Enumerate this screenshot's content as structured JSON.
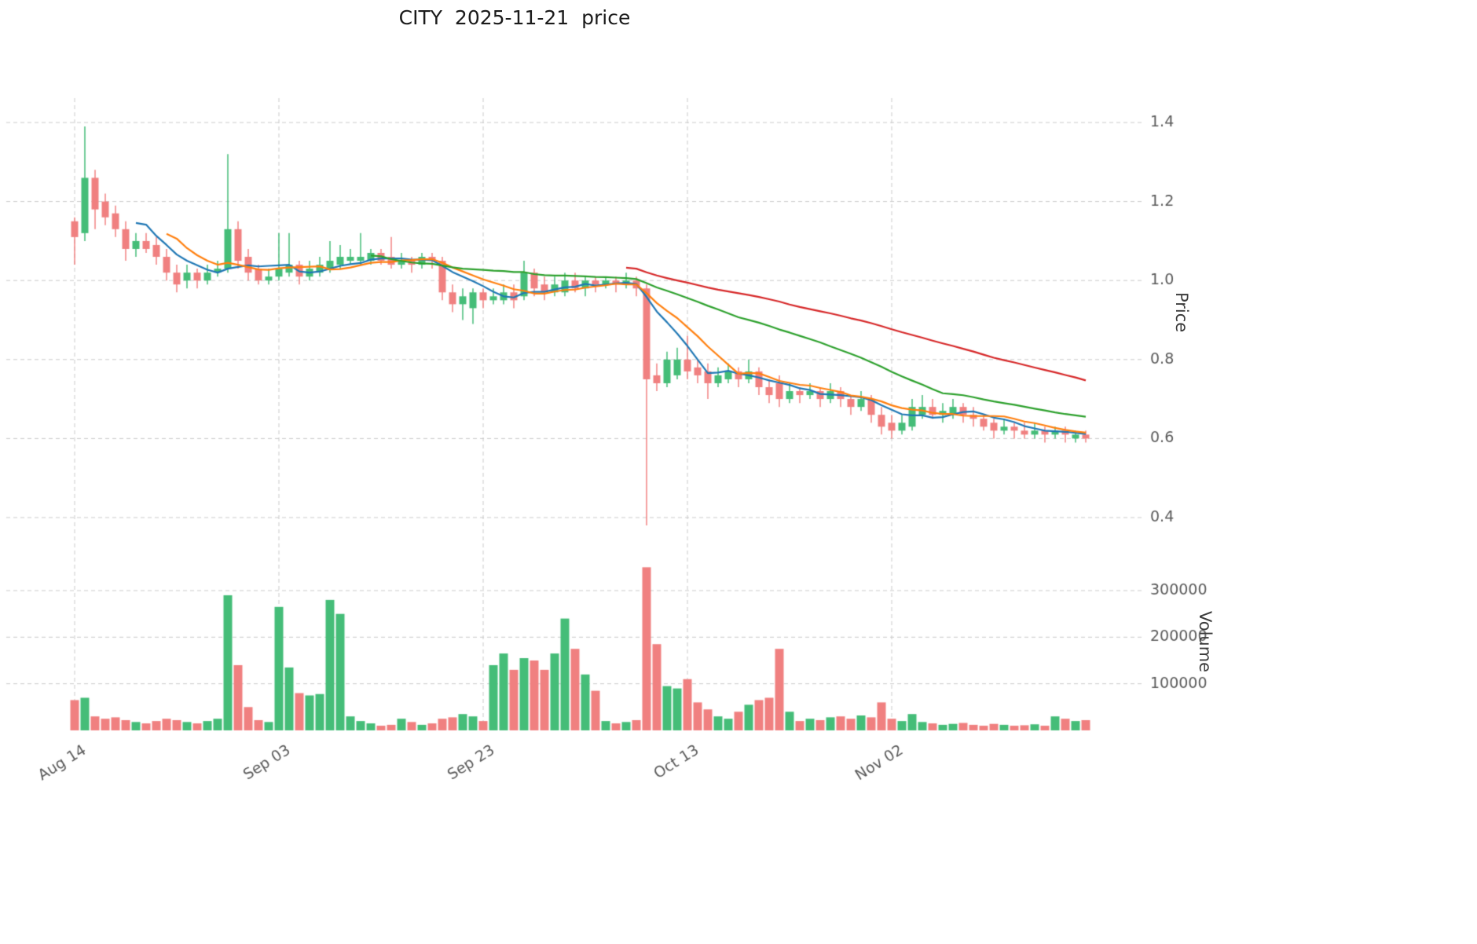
{
  "title": "CITY  2025-11-21  price",
  "axes": {
    "price_label": "Price",
    "volume_label": "Volume"
  },
  "colors": {
    "up": "#45bd78",
    "down": "#f08080",
    "grid": "#c9c9c9",
    "tick_text": "#5a5a5a",
    "ma_colors": [
      "#1f77b4",
      "#ff7f0e",
      "#2ca02c",
      "#d62728"
    ]
  },
  "chart_data": {
    "type": "candlestick",
    "title": "CITY  2025-11-21  price",
    "symbol": "CITY",
    "as_of_date": "2025-11-21",
    "ylabel": "Price",
    "ylabel2": "Volume",
    "price_axis_ticks": [
      0.4,
      0.6,
      0.8,
      1.0,
      1.2,
      1.4
    ],
    "price_axis_range": [
      0.33,
      1.46
    ],
    "volume_axis_ticks": [
      100000,
      200000,
      300000
    ],
    "volume_axis_range": [
      0,
      380000
    ],
    "x_tick_labels": [
      "Aug 14",
      "Sep 03",
      "Sep 23",
      "Oct 13",
      "Nov 02"
    ],
    "x_tick_indices": [
      0,
      20,
      40,
      60,
      80
    ],
    "n": 100,
    "grid": true,
    "legend": false,
    "moving_averages": [
      {
        "name": "ma-short",
        "window": 7,
        "color": "#1f77b4"
      },
      {
        "name": "ma-mid",
        "window": 10,
        "color": "#ff7f0e"
      },
      {
        "name": "ma-long",
        "window": 30,
        "color": "#2ca02c"
      },
      {
        "name": "ma-xlong",
        "window": 55,
        "color": "#d62728"
      }
    ],
    "open": [
      1.15,
      1.12,
      1.26,
      1.2,
      1.17,
      1.13,
      1.08,
      1.1,
      1.09,
      1.06,
      1.02,
      1.0,
      1.02,
      1.0,
      1.02,
      1.03,
      1.13,
      1.06,
      1.03,
      1.0,
      1.01,
      1.02,
      1.04,
      1.01,
      1.02,
      1.03,
      1.04,
      1.05,
      1.05,
      1.05,
      1.07,
      1.06,
      1.04,
      1.05,
      1.04,
      1.06,
      1.05,
      0.97,
      0.94,
      0.93,
      0.97,
      0.95,
      0.95,
      0.97,
      0.96,
      1.02,
      0.99,
      0.97,
      0.97,
      1.0,
      0.98,
      1.0,
      0.99,
      1.0,
      0.99,
      1.0,
      0.98,
      0.76,
      0.74,
      0.76,
      0.8,
      0.78,
      0.77,
      0.74,
      0.75,
      0.77,
      0.75,
      0.77,
      0.73,
      0.74,
      0.7,
      0.72,
      0.71,
      0.72,
      0.7,
      0.72,
      0.7,
      0.68,
      0.7,
      0.66,
      0.64,
      0.62,
      0.63,
      0.66,
      0.68,
      0.66,
      0.66,
      0.68,
      0.66,
      0.65,
      0.64,
      0.62,
      0.63,
      0.62,
      0.61,
      0.62,
      0.61,
      0.62,
      0.6,
      0.61
    ],
    "high": [
      1.16,
      1.39,
      1.28,
      1.22,
      1.19,
      1.15,
      1.12,
      1.12,
      1.11,
      1.08,
      1.04,
      1.04,
      1.03,
      1.04,
      1.05,
      1.32,
      1.15,
      1.08,
      1.04,
      1.03,
      1.12,
      1.12,
      1.05,
      1.05,
      1.06,
      1.1,
      1.09,
      1.08,
      1.12,
      1.08,
      1.08,
      1.11,
      1.07,
      1.06,
      1.07,
      1.07,
      1.06,
      0.99,
      0.98,
      0.98,
      0.98,
      0.98,
      0.99,
      0.99,
      1.05,
      1.03,
      1.01,
      1.01,
      1.02,
      1.02,
      1.01,
      1.01,
      1.01,
      1.01,
      1.02,
      1.01,
      0.99,
      0.79,
      0.82,
      0.83,
      0.86,
      0.8,
      0.79,
      0.78,
      0.79,
      0.78,
      0.8,
      0.78,
      0.75,
      0.76,
      0.74,
      0.73,
      0.74,
      0.73,
      0.74,
      0.73,
      0.71,
      0.72,
      0.71,
      0.68,
      0.66,
      0.66,
      0.7,
      0.71,
      0.7,
      0.69,
      0.7,
      0.69,
      0.68,
      0.66,
      0.65,
      0.65,
      0.64,
      0.64,
      0.64,
      0.63,
      0.63,
      0.63,
      0.62,
      0.62
    ],
    "low": [
      1.04,
      1.1,
      1.13,
      1.14,
      1.11,
      1.05,
      1.06,
      1.07,
      1.04,
      1.0,
      0.97,
      0.98,
      0.98,
      0.99,
      1.01,
      1.02,
      1.03,
      1.0,
      0.99,
      0.99,
      1.0,
      1.01,
      0.99,
      1.0,
      1.01,
      1.02,
      1.03,
      1.04,
      1.04,
      1.04,
      1.04,
      1.03,
      1.03,
      1.02,
      1.03,
      1.03,
      0.95,
      0.92,
      0.9,
      0.89,
      0.93,
      0.94,
      0.94,
      0.93,
      0.95,
      0.96,
      0.95,
      0.96,
      0.96,
      0.97,
      0.96,
      0.97,
      0.98,
      0.97,
      0.98,
      0.96,
      0.38,
      0.72,
      0.73,
      0.75,
      0.75,
      0.74,
      0.7,
      0.73,
      0.74,
      0.73,
      0.74,
      0.71,
      0.69,
      0.68,
      0.69,
      0.69,
      0.7,
      0.68,
      0.69,
      0.68,
      0.66,
      0.67,
      0.64,
      0.61,
      0.6,
      0.61,
      0.62,
      0.65,
      0.65,
      0.64,
      0.65,
      0.64,
      0.63,
      0.62,
      0.6,
      0.61,
      0.6,
      0.6,
      0.6,
      0.59,
      0.6,
      0.59,
      0.59,
      0.59
    ],
    "close": [
      1.11,
      1.26,
      1.18,
      1.16,
      1.13,
      1.08,
      1.1,
      1.08,
      1.06,
      1.02,
      0.99,
      1.02,
      1.0,
      1.02,
      1.03,
      1.13,
      1.05,
      1.02,
      1.0,
      1.01,
      1.03,
      1.04,
      1.01,
      1.03,
      1.04,
      1.05,
      1.06,
      1.06,
      1.06,
      1.07,
      1.05,
      1.04,
      1.05,
      1.04,
      1.06,
      1.05,
      0.97,
      0.94,
      0.96,
      0.97,
      0.95,
      0.96,
      0.97,
      0.95,
      1.02,
      0.98,
      0.97,
      0.99,
      1.0,
      0.98,
      1.0,
      0.99,
      1.0,
      0.99,
      1.0,
      0.98,
      0.75,
      0.74,
      0.8,
      0.8,
      0.77,
      0.76,
      0.74,
      0.76,
      0.77,
      0.75,
      0.77,
      0.73,
      0.71,
      0.7,
      0.72,
      0.71,
      0.72,
      0.7,
      0.72,
      0.7,
      0.68,
      0.7,
      0.66,
      0.63,
      0.62,
      0.64,
      0.68,
      0.68,
      0.66,
      0.67,
      0.68,
      0.66,
      0.65,
      0.63,
      0.62,
      0.63,
      0.62,
      0.61,
      0.62,
      0.61,
      0.62,
      0.61,
      0.61,
      0.6
    ],
    "volume": [
      65000,
      70000,
      30000,
      25000,
      28000,
      22000,
      18000,
      15000,
      20000,
      25000,
      22000,
      18000,
      15000,
      20000,
      25000,
      290000,
      140000,
      50000,
      22000,
      18000,
      265000,
      135000,
      80000,
      75000,
      78000,
      280000,
      250000,
      30000,
      20000,
      15000,
      10000,
      12000,
      25000,
      18000,
      12000,
      15000,
      25000,
      28000,
      35000,
      30000,
      20000,
      140000,
      165000,
      130000,
      155000,
      150000,
      130000,
      165000,
      240000,
      175000,
      120000,
      85000,
      20000,
      15000,
      18000,
      22000,
      350000,
      185000,
      95000,
      90000,
      110000,
      60000,
      45000,
      30000,
      25000,
      40000,
      55000,
      65000,
      70000,
      175000,
      40000,
      20000,
      25000,
      22000,
      28000,
      30000,
      25000,
      32000,
      28000,
      60000,
      25000,
      20000,
      35000,
      18000,
      15000,
      12000,
      14000,
      16000,
      12000,
      10000,
      14000,
      12000,
      10000,
      11000,
      13000,
      10000,
      30000,
      25000,
      20000,
      22000
    ]
  }
}
